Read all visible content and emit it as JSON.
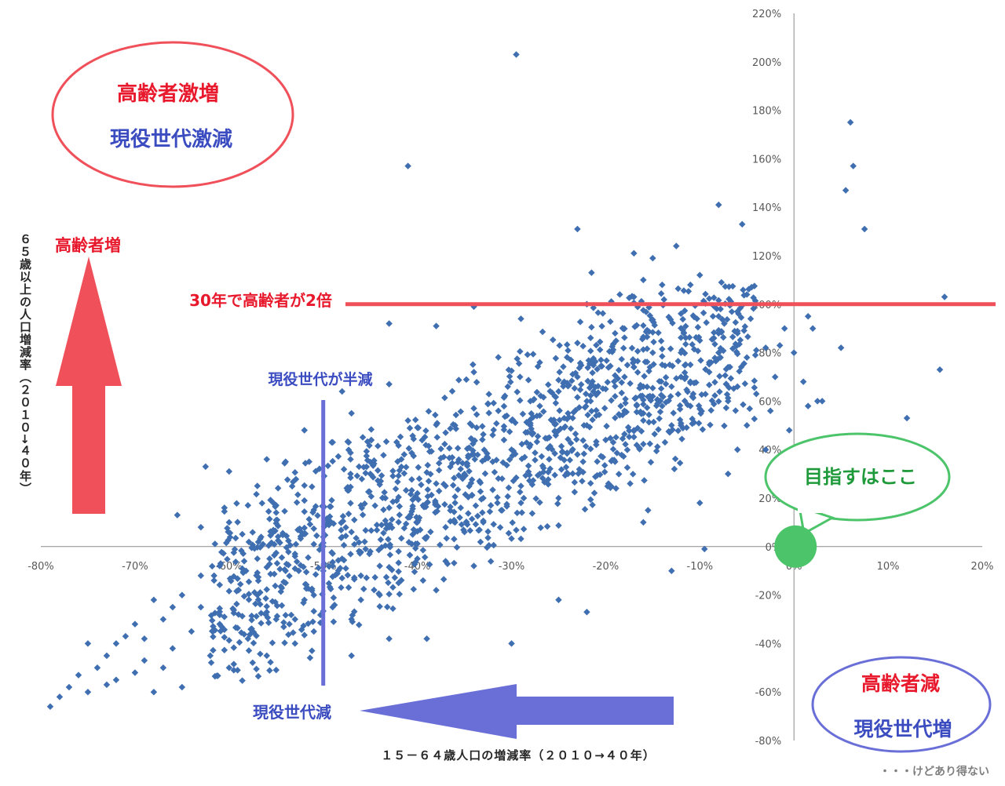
{
  "chart_data": {
    "type": "scatter",
    "title": "",
    "xlabel": "１５－６４歳人口の増減率（２０１０→４０年）",
    "ylabel": "６５歳以上の人口増減率（２０１０→４０年）",
    "xlim": [
      -80,
      20
    ],
    "ylim": [
      -80,
      220
    ],
    "x_ticks": [
      "-80%",
      "-70%",
      "-60%",
      "-50%",
      "-40%",
      "-30%",
      "-20%",
      "-10%",
      "0%",
      "10%",
      "20%"
    ],
    "y_ticks": [
      "220%",
      "200%",
      "180%",
      "160%",
      "140%",
      "120%",
      "100%",
      "80%",
      "60%",
      "40%",
      "20%",
      "0%",
      "-20%",
      "-40%",
      "-60%",
      "-80%"
    ],
    "grid": false,
    "legend": "none",
    "marker_color": "#3f6fb0",
    "points": [
      [
        -79,
        -66
      ],
      [
        -77,
        -58
      ],
      [
        -75,
        -60
      ],
      [
        -73,
        -57
      ],
      [
        -72,
        -40
      ],
      [
        -71,
        -37
      ],
      [
        -70,
        -52
      ],
      [
        -69,
        -47
      ],
      [
        -68,
        -60
      ],
      [
        -67,
        -50
      ],
      [
        -66,
        -42
      ],
      [
        -65,
        -58
      ],
      [
        -64,
        -35
      ],
      [
        -63,
        -25
      ],
      [
        -62,
        -45
      ],
      [
        -61,
        -32
      ],
      [
        -60,
        -50
      ],
      [
        -59,
        -28
      ],
      [
        -58,
        -38
      ],
      [
        -57,
        -20
      ],
      [
        -56,
        -45
      ],
      [
        -55,
        -30
      ],
      [
        -54,
        -15
      ],
      [
        -53,
        -40
      ],
      [
        -52,
        -22
      ],
      [
        -51,
        -35
      ],
      [
        -50,
        -10
      ],
      [
        -49,
        -25
      ],
      [
        -48,
        -5
      ],
      [
        -47,
        -30
      ],
      [
        -46,
        -12
      ],
      [
        -45,
        -2
      ],
      [
        -44,
        -20
      ],
      [
        -43,
        8
      ],
      [
        -42,
        -15
      ],
      [
        -41,
        12
      ],
      [
        -40,
        -5
      ],
      [
        -39,
        18
      ],
      [
        -38,
        -18
      ],
      [
        -37,
        25
      ],
      [
        -36,
        10
      ],
      [
        -35,
        30
      ],
      [
        -34,
        -8
      ],
      [
        -33,
        20
      ],
      [
        -32,
        35
      ],
      [
        -31,
        15
      ],
      [
        -30,
        40
      ],
      [
        -29,
        25
      ],
      [
        -28,
        50
      ],
      [
        -27,
        30
      ],
      [
        -26,
        45
      ],
      [
        -25,
        20
      ],
      [
        -24,
        55
      ],
      [
        -23,
        38
      ],
      [
        -22,
        60
      ],
      [
        -21,
        42
      ],
      [
        -20,
        65
      ],
      [
        -19,
        35
      ],
      [
        -18,
        70
      ],
      [
        -17,
        48
      ],
      [
        -16,
        55
      ],
      [
        -15,
        62
      ],
      [
        -14,
        75
      ],
      [
        -13,
        50
      ],
      [
        -12,
        80
      ],
      [
        -11,
        68
      ],
      [
        -10,
        85
      ],
      [
        -9,
        72
      ],
      [
        -8,
        95
      ],
      [
        -7,
        60
      ],
      [
        -6,
        88
      ],
      [
        -5,
        78
      ],
      [
        -4,
        100
      ],
      [
        -3,
        82
      ],
      [
        -2,
        70
      ],
      [
        -1,
        90
      ],
      [
        0,
        80
      ],
      [
        1,
        68
      ],
      [
        2,
        90
      ],
      [
        3,
        60
      ],
      [
        5,
        82
      ],
      [
        5.5,
        147
      ],
      [
        6,
        175
      ],
      [
        6.3,
        157
      ],
      [
        7.5,
        131
      ],
      [
        12,
        53
      ],
      [
        15.5,
        73
      ],
      [
        16,
        103
      ],
      [
        -29.5,
        203
      ],
      [
        -41,
        157
      ],
      [
        -23,
        131
      ],
      [
        -8,
        141
      ],
      [
        -5.5,
        133
      ],
      [
        -12.5,
        124
      ],
      [
        -17,
        121
      ],
      [
        -15,
        119
      ],
      [
        -21.5,
        113
      ],
      [
        -16,
        110
      ],
      [
        -10,
        112
      ],
      [
        -14,
        108
      ],
      [
        -11,
        108
      ],
      [
        -22,
        100
      ],
      [
        -18.5,
        104
      ],
      [
        -17,
        103
      ],
      [
        -34,
        99
      ],
      [
        -38,
        91
      ],
      [
        -43,
        92
      ],
      [
        -29,
        94
      ],
      [
        -27,
        76
      ],
      [
        -43,
        67
      ],
      [
        -62.5,
        33
      ],
      [
        -60,
        31
      ],
      [
        -65.5,
        13
      ],
      [
        -58,
        17
      ],
      [
        -55,
        14
      ],
      [
        -56,
        36
      ],
      [
        -52,
        19
      ],
      [
        -49,
        43
      ],
      [
        -52,
        48
      ],
      [
        -51.5,
        35
      ],
      [
        -37,
        8
      ],
      [
        -48,
        -13
      ],
      [
        -47,
        -45
      ],
      [
        -43,
        -38
      ],
      [
        -39,
        -38
      ],
      [
        -30,
        -40
      ],
      [
        -22,
        -27
      ],
      [
        -25,
        -22
      ],
      [
        -13,
        -10
      ],
      [
        -16,
        10
      ],
      [
        -10,
        18
      ],
      [
        -9.5,
        -1
      ],
      [
        -15.5,
        15
      ],
      [
        -12,
        50
      ],
      [
        -6,
        40
      ],
      [
        -7,
        30
      ],
      [
        -5,
        50
      ],
      [
        -3,
        40
      ],
      [
        -4,
        63
      ],
      [
        -1.5,
        83
      ],
      [
        -2.5,
        56
      ],
      [
        -0.5,
        48
      ],
      [
        0,
        30
      ],
      [
        1.5,
        58
      ],
      [
        2.5,
        60
      ],
      [
        1.5,
        95
      ],
      [
        -6,
        97
      ],
      [
        -8.5,
        86
      ],
      [
        -11,
        75
      ],
      [
        -19,
        88
      ],
      [
        -20.5,
        77
      ],
      [
        -28,
        60
      ],
      [
        -34,
        72
      ],
      [
        -36,
        50
      ],
      [
        -41,
        52
      ],
      [
        -45,
        30
      ],
      [
        -47,
        55
      ],
      [
        -48,
        64
      ],
      [
        -54,
        35
      ],
      [
        -57,
        25
      ],
      [
        -60,
        10
      ],
      [
        -63,
        8
      ],
      [
        -66,
        -25
      ],
      [
        -68,
        -22
      ],
      [
        -70,
        -32
      ],
      [
        -73,
        -45
      ],
      [
        -75,
        -40
      ],
      [
        -76,
        -53
      ],
      [
        -78,
        -62
      ],
      [
        -74,
        -50
      ],
      [
        -72,
        -55
      ],
      [
        -69,
        -38
      ],
      [
        -67,
        -30
      ],
      [
        -65,
        -20
      ],
      [
        -63,
        -12
      ],
      [
        -61,
        -8
      ],
      [
        -59,
        -18
      ],
      [
        -57,
        -5
      ],
      [
        -56,
        -27
      ],
      [
        -54,
        -10
      ],
      [
        -53,
        -3
      ],
      [
        -51,
        -20
      ],
      [
        -50,
        4
      ],
      [
        -49,
        -8
      ],
      [
        -47,
        6
      ],
      [
        -46,
        -22
      ],
      [
        -44,
        -8
      ],
      [
        -43,
        16
      ],
      [
        -42,
        -2
      ],
      [
        -40,
        22
      ],
      [
        -39,
        4
      ],
      [
        -38,
        26
      ],
      [
        -37,
        -6
      ],
      [
        -36,
        18
      ],
      [
        -35,
        6
      ],
      [
        -34,
        38
      ],
      [
        -33,
        10
      ],
      [
        -32,
        46
      ],
      [
        -31,
        28
      ],
      [
        -30,
        52
      ],
      [
        -29,
        18
      ],
      [
        -28,
        42
      ],
      [
        -27,
        58
      ],
      [
        -26,
        36
      ],
      [
        -25,
        64
      ],
      [
        -24,
        30
      ],
      [
        -23,
        70
      ],
      [
        -22,
        50
      ],
      [
        -21,
        54
      ],
      [
        -20,
        44
      ],
      [
        -19,
        62
      ],
      [
        -18,
        56
      ],
      [
        -17,
        74
      ],
      [
        -16,
        66
      ],
      [
        -15,
        80
      ],
      [
        -14,
        58
      ],
      [
        -13,
        66
      ],
      [
        -12,
        70
      ],
      [
        -11,
        58
      ],
      [
        -9,
        76
      ],
      [
        -8,
        80
      ],
      [
        -7,
        74
      ],
      [
        -6,
        66
      ]
    ],
    "annotations": {
      "top_left_line1": "高齢者激増",
      "top_left_line2": "現役世代激減",
      "bottom_right_line1": "高齢者減",
      "bottom_right_line2": "現役世代増",
      "elderly_up": "高齢者増",
      "double_line": "30年で高齢者が2倍",
      "half_line": "現役世代が半減",
      "working_down": "現役世代減",
      "target": "目指すはここ",
      "footnote": "・・・けどあり得ない"
    },
    "reference_lines": {
      "y_double": 100,
      "x_half": -50
    },
    "colors": {
      "red_accent": "#f0505a",
      "blue_accent": "#6a6fd8",
      "green_accent": "#4cc46a",
      "text_red": "#e8192c",
      "text_blue": "#3b4cc0",
      "text_green": "#1f9a3a"
    }
  }
}
